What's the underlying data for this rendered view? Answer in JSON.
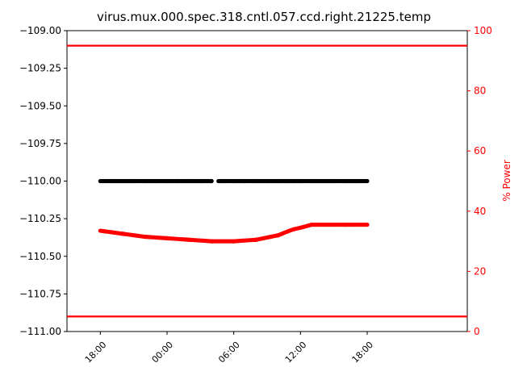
{
  "chart_data": {
    "type": "line",
    "title": "virus.mux.000.spec.318.cntl.057.ccd.right.21225.temp",
    "ylabel": "",
    "y2label": "% Power",
    "ylim": [
      -111.0,
      -109.0
    ],
    "y2lim": [
      0,
      100
    ],
    "xlim": [
      -3,
      33
    ],
    "yticks": [
      -109.0,
      -109.25,
      -109.5,
      -109.75,
      -110.0,
      -110.25,
      -110.5,
      -110.75,
      -111.0
    ],
    "ytick_labels": [
      "−109.00",
      "−109.25",
      "−109.50",
      "−109.75",
      "−110.00",
      "−110.25",
      "−110.50",
      "−110.75",
      "−111.00"
    ],
    "y2ticks": [
      0,
      20,
      40,
      60,
      80,
      100
    ],
    "y2tick_labels": [
      "0",
      "20",
      "40",
      "60",
      "80",
      "100"
    ],
    "xticks": [
      0,
      6,
      12,
      18,
      24
    ],
    "xtick_labels": [
      "18:00",
      "00:00",
      "06:00",
      "12:00",
      "18:00"
    ],
    "hlines_power": [
      {
        "value": 5,
        "color": "#ff0000"
      },
      {
        "value": 95,
        "color": "#ff0000"
      }
    ],
    "series": [
      {
        "axis": "left",
        "color": "#000000",
        "points": [
          [
            0,
            -110.0
          ],
          [
            1,
            -110.0
          ],
          [
            2,
            -110.0
          ],
          [
            3,
            -110.0
          ],
          [
            4,
            -110.0
          ],
          [
            5,
            -110.0
          ],
          [
            6,
            -110.0
          ],
          [
            7,
            -110.0
          ],
          [
            8,
            -110.0
          ],
          [
            9,
            -110.0
          ],
          [
            10,
            -110.0
          ],
          [
            11,
            -110.0
          ],
          [
            12,
            -110.0
          ],
          [
            13,
            -110.0
          ],
          [
            14,
            -110.0
          ],
          [
            15,
            -110.0
          ],
          [
            16,
            -110.0
          ],
          [
            16.7,
            -110.0
          ],
          [
            17.4,
            -110.0
          ],
          [
            18,
            -110.0
          ],
          [
            19,
            -110.0
          ],
          [
            20,
            -110.0
          ],
          [
            21,
            -110.0
          ],
          [
            22,
            -110.0
          ],
          [
            23,
            -110.0
          ],
          [
            24,
            -110.0
          ]
        ]
      },
      {
        "axis": "right",
        "color": "#ff0000",
        "points": [
          [
            0,
            33.5
          ],
          [
            2,
            32.5
          ],
          [
            4,
            31.5
          ],
          [
            6,
            31.0
          ],
          [
            8,
            30.5
          ],
          [
            10,
            30.0
          ],
          [
            12,
            30.0
          ],
          [
            14,
            30.5
          ],
          [
            16,
            32.0
          ],
          [
            17,
            33.5
          ],
          [
            17.4,
            34.0
          ],
          [
            18,
            34.5
          ],
          [
            19,
            35.5
          ],
          [
            20,
            35.5
          ],
          [
            22,
            35.5
          ],
          [
            24,
            35.5
          ]
        ]
      }
    ]
  }
}
